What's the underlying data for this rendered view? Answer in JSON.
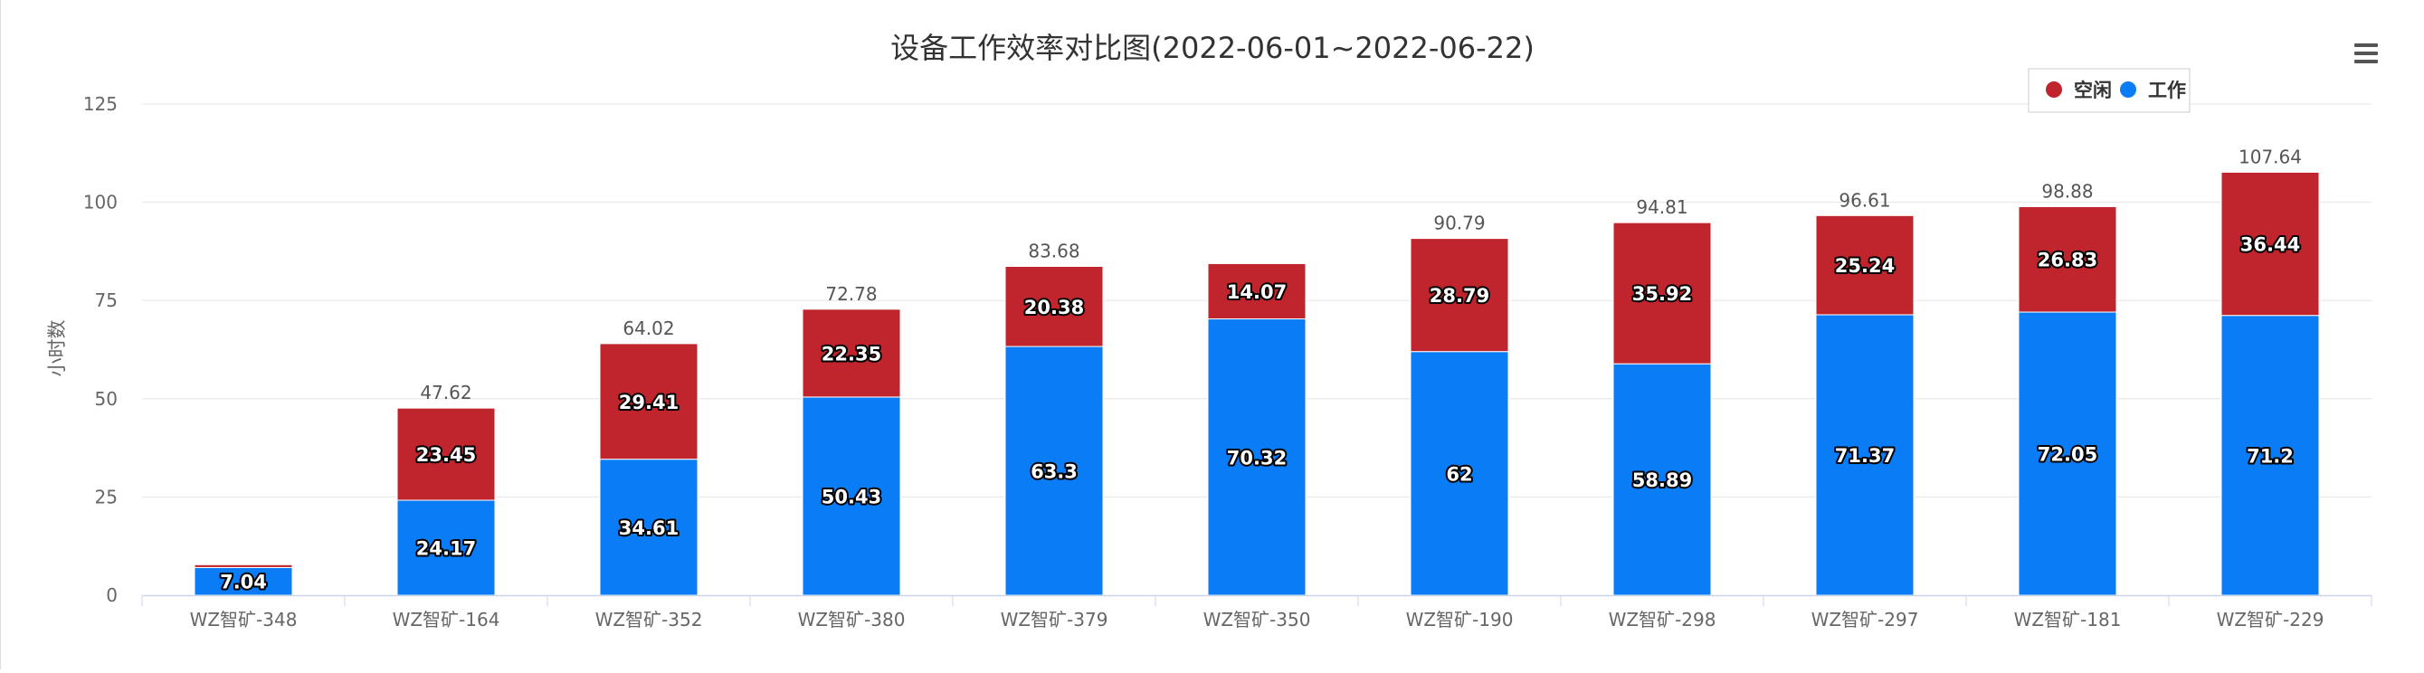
{
  "chart_data": {
    "type": "bar",
    "stacked": true,
    "title": "设备工作效率对比图(2022-06-01~2022-06-22)",
    "ylabel": "小时数",
    "xlabel": "",
    "ylim": [
      0,
      125
    ],
    "yticks": [
      0,
      25,
      50,
      75,
      100,
      125
    ],
    "grid": true,
    "legend_position": "top-right",
    "categories": [
      "WZ智矿-348",
      "WZ智矿-164",
      "WZ智矿-352",
      "WZ智矿-380",
      "WZ智矿-379",
      "WZ智矿-350",
      "WZ智矿-190",
      "WZ智矿-298",
      "WZ智矿-297",
      "WZ智矿-181",
      "WZ智矿-229"
    ],
    "series": [
      {
        "name": "工作",
        "color": "#0a7cf5",
        "values": [
          7.04,
          24.17,
          34.61,
          50.43,
          63.3,
          70.32,
          62,
          58.89,
          71.37,
          72.05,
          71.2
        ]
      },
      {
        "name": "空闲",
        "color": "#c0242d",
        "values": [
          0.72,
          23.45,
          29.41,
          22.35,
          20.38,
          14.07,
          28.79,
          35.92,
          25.24,
          26.83,
          36.44
        ]
      }
    ],
    "segment_labels": {
      "工作": [
        "7.04",
        "24.17",
        "34.61",
        "50.43",
        "63.3",
        "70.32",
        "62",
        "58.89",
        "71.37",
        "72.05",
        "71.2"
      ],
      "空闲": [
        "",
        "23.45",
        "29.41",
        "22.35",
        "20.38",
        "14.07",
        "28.79",
        "35.92",
        "25.24",
        "26.83",
        "36.44"
      ]
    },
    "totals": [
      "",
      "47.62",
      "64.02",
      "72.78",
      "83.68",
      "",
      "90.79",
      "94.81",
      "96.61",
      "98.88",
      "107.64"
    ],
    "legend_order": [
      "空闲",
      "工作"
    ]
  },
  "toolbar": {
    "menu_icon": "hamburger-menu-icon"
  }
}
